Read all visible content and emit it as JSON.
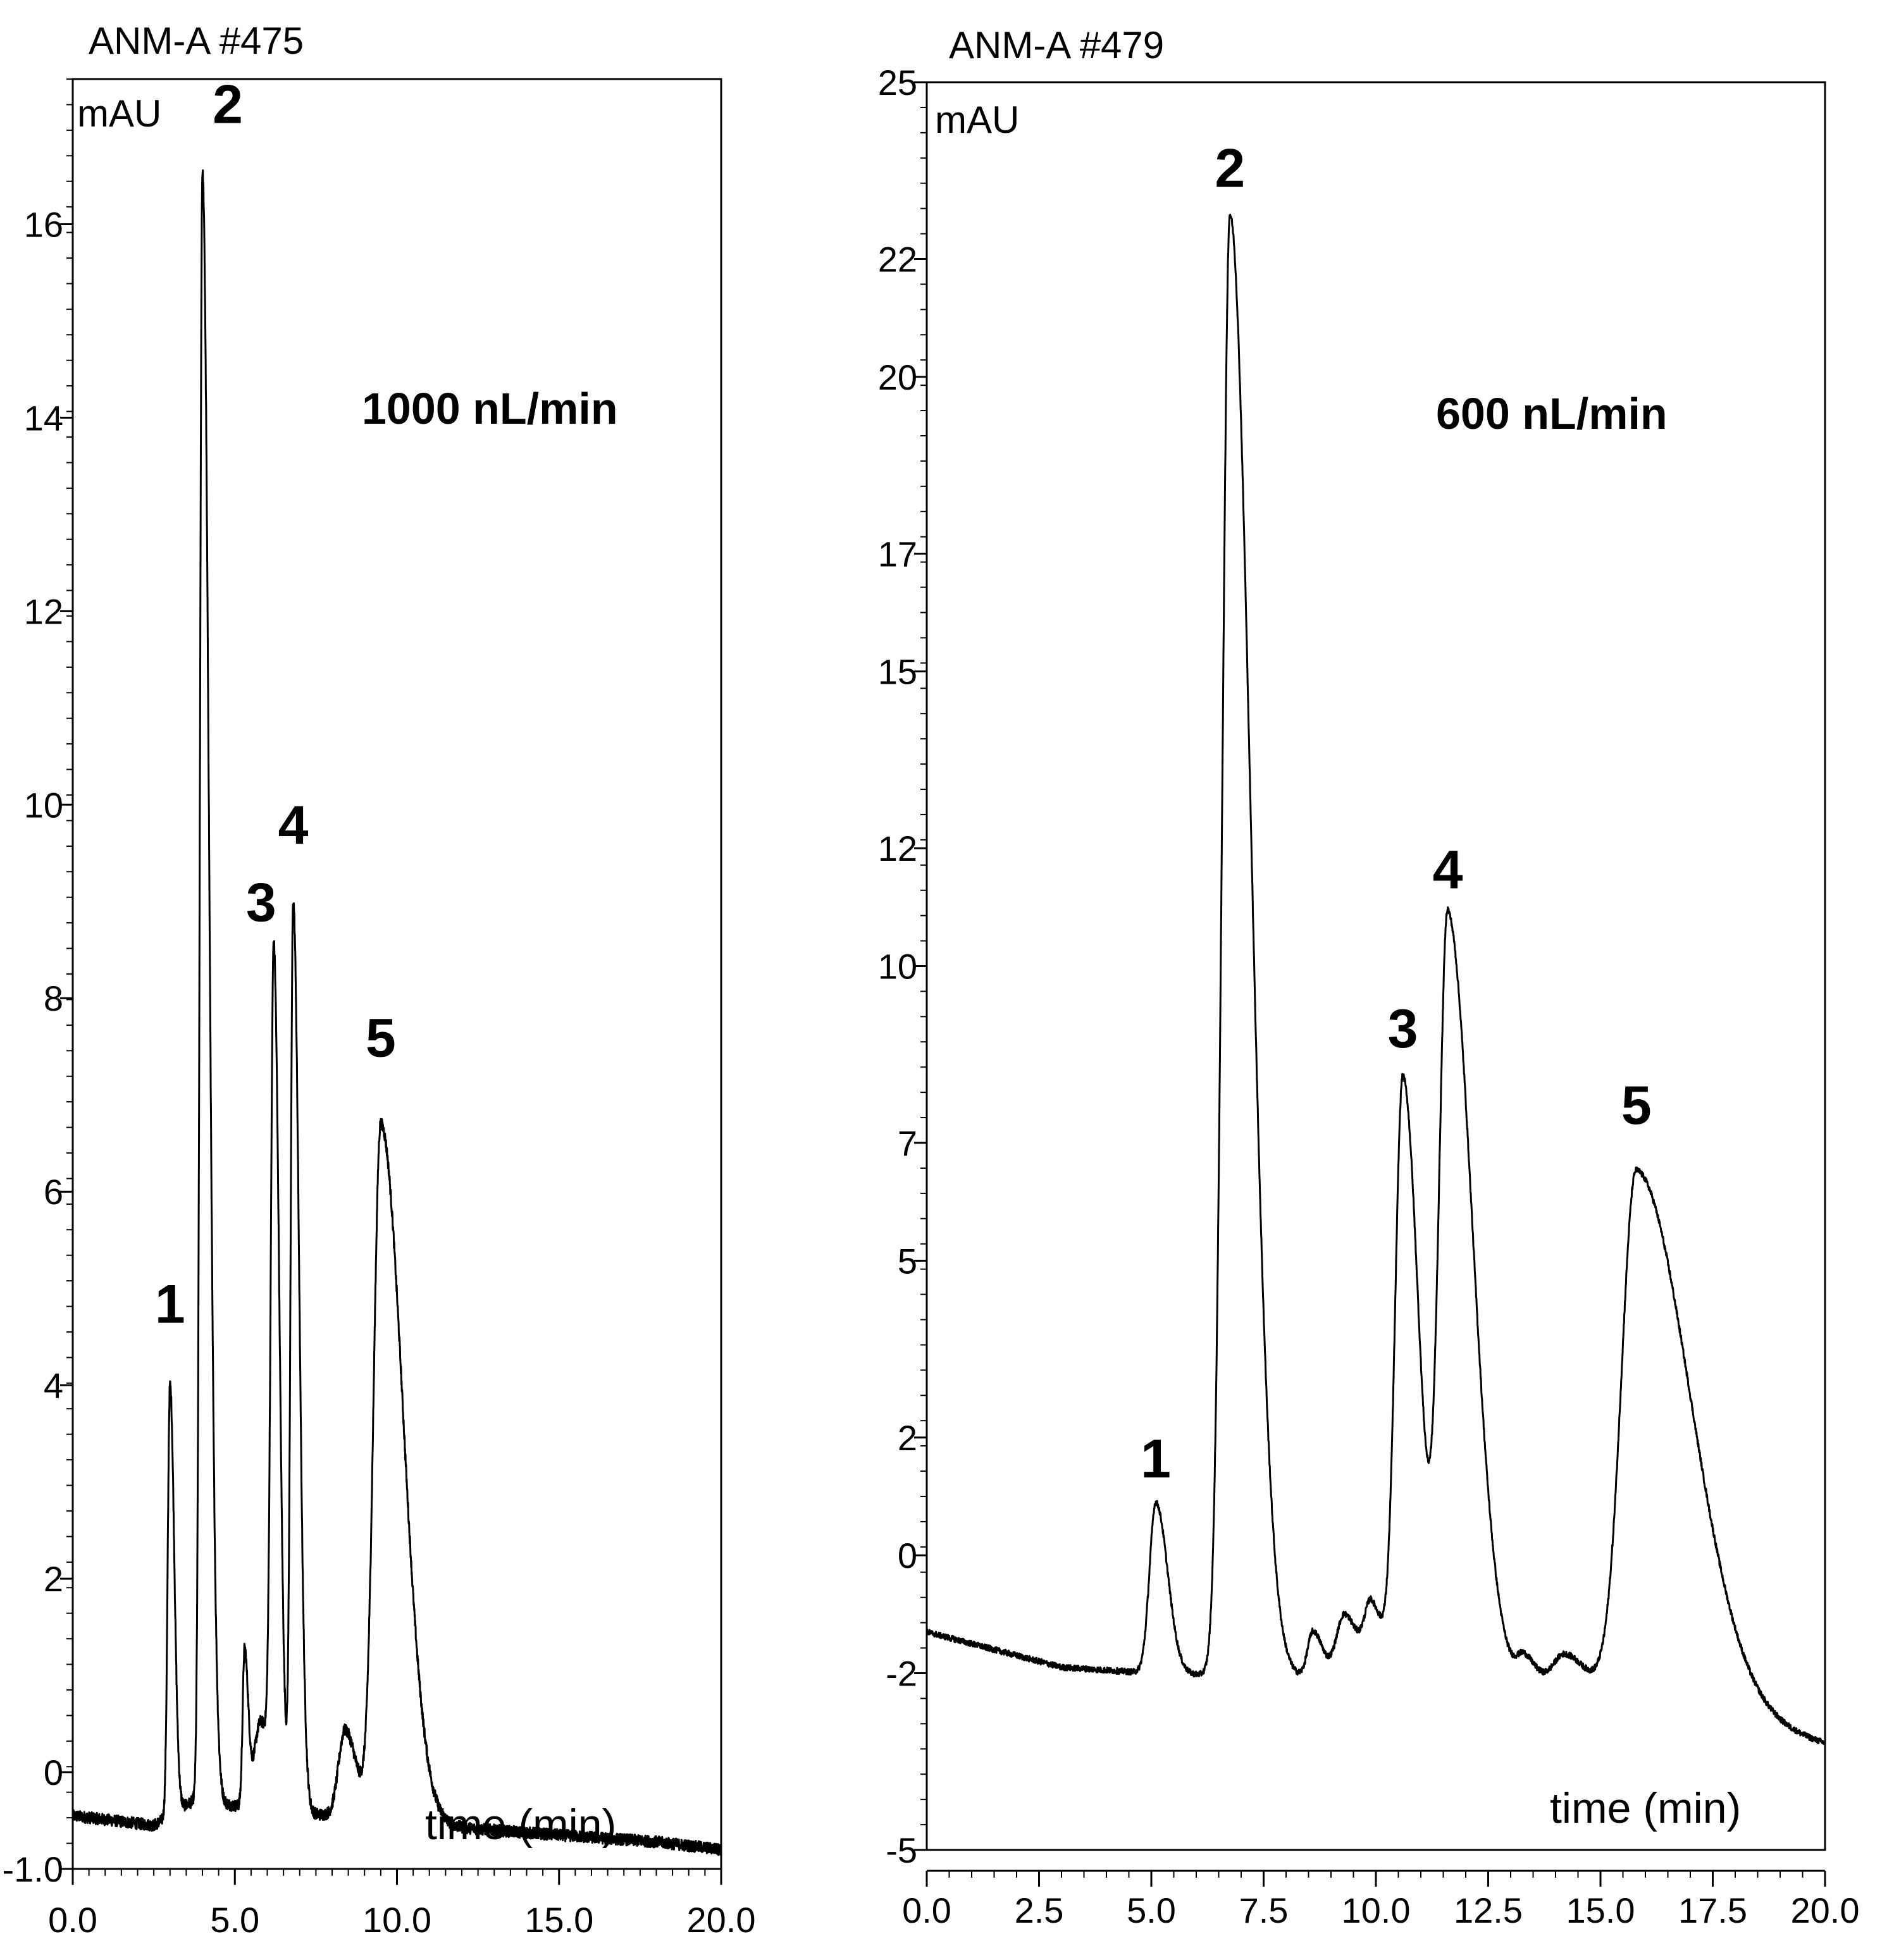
{
  "colors": {
    "trace": "#000000",
    "axis": "#000000",
    "background": "#ffffff"
  },
  "chart_data": [
    {
      "type": "line",
      "title": "ANM-A #475",
      "ylabel": "mAU",
      "xlabel": "time (min)",
      "annotation": "1000 nL/min",
      "xlim": [
        0,
        20
      ],
      "ylim": [
        -1,
        17.5
      ],
      "xticks": [
        0,
        5,
        10,
        15,
        20
      ],
      "xtick_labels": [
        "0.0",
        "5.0",
        "10.0",
        "15.0",
        "20.0"
      ],
      "yticks": [
        -1,
        0,
        2,
        4,
        6,
        8,
        10,
        12,
        14,
        16
      ],
      "ytick_labels": [
        "-1.0",
        "0",
        "2",
        "4",
        "6",
        "8",
        "10",
        "12",
        "14",
        "16"
      ],
      "baseline": [
        [
          0,
          -0.45
        ],
        [
          2.5,
          -0.55
        ],
        [
          3.7,
          -0.3
        ],
        [
          8,
          -0.45
        ],
        [
          11,
          -0.55
        ],
        [
          15,
          -0.65
        ],
        [
          18,
          -0.72
        ],
        [
          20,
          -0.8
        ]
      ],
      "peaks": [
        {
          "t": 3.0,
          "h": 4.45,
          "w": 0.07,
          "tail": 0.06
        },
        {
          "t": 4.0,
          "h": 16.85,
          "w": 0.08,
          "tail": 0.12
        },
        {
          "t": 5.3,
          "h": 1.6,
          "w": 0.06,
          "tail": 0.05
        },
        {
          "t": 5.8,
          "h": 0.9,
          "w": 0.2,
          "tail": 0.1
        },
        {
          "t": 6.2,
          "h": 8.6,
          "w": 0.09,
          "tail": 0.08
        },
        {
          "t": 6.8,
          "h": 9.4,
          "w": 0.08,
          "tail": 0.1
        },
        {
          "t": 8.4,
          "h": 0.9,
          "w": 0.2,
          "tail": 0.15
        },
        {
          "t": 9.5,
          "h": 7.2,
          "w": 0.22,
          "tail": 0.45
        }
      ],
      "noise": 0.06,
      "peak_labels": [
        {
          "label": "1",
          "t": 3.0,
          "y": 4.45
        },
        {
          "label": "2",
          "t": 4.0,
          "y": 16.85
        },
        {
          "label": "3",
          "t": 6.2,
          "y": 8.6
        },
        {
          "label": "4",
          "t": 6.8,
          "y": 9.4
        },
        {
          "label": "5",
          "t": 9.5,
          "y": 7.2
        }
      ]
    },
    {
      "type": "line",
      "title": "ANM-A #479",
      "ylabel": "mAU",
      "xlabel": "time (min)",
      "annotation": "600 nL/min",
      "xlim": [
        0,
        20
      ],
      "ylim": [
        -5,
        25
      ],
      "xticks": [
        0,
        2.5,
        5,
        7.5,
        10,
        12.5,
        15,
        17.5,
        20
      ],
      "xtick_labels": [
        "0.0",
        "2.5",
        "5.0",
        "7.5",
        "10.0",
        "12.5",
        "15.0",
        "17.5",
        "20.0"
      ],
      "yticks": [
        -5,
        -2,
        0,
        2,
        5,
        7,
        10,
        12,
        15,
        17,
        20,
        22,
        25
      ],
      "ytick_labels": [
        "-5",
        "-2",
        "0",
        "2",
        "5",
        "7",
        "10",
        "12",
        "15",
        "17",
        "20",
        "22",
        "25"
      ],
      "baseline": [
        [
          0,
          -1.3
        ],
        [
          3,
          -1.9
        ],
        [
          5,
          -2.0
        ],
        [
          9,
          -2.1
        ],
        [
          12,
          -2.1
        ],
        [
          15,
          -2.2
        ],
        [
          18,
          -2.8
        ],
        [
          20,
          -3.2
        ]
      ],
      "peaks": [
        {
          "t": 5.1,
          "h": 2.9,
          "w": 0.14,
          "tail": 0.12
        },
        {
          "t": 6.75,
          "h": 24.8,
          "w": 0.17,
          "tail": 0.28
        },
        {
          "t": 8.6,
          "h": 0.8,
          "w": 0.12,
          "tail": 0.1
        },
        {
          "t": 9.3,
          "h": 1.1,
          "w": 0.18,
          "tail": 0.12
        },
        {
          "t": 9.9,
          "h": 1.2,
          "w": 0.15,
          "tail": 0.12
        },
        {
          "t": 10.6,
          "h": 10.2,
          "w": 0.17,
          "tail": 0.18
        },
        {
          "t": 11.6,
          "h": 12.9,
          "w": 0.19,
          "tail": 0.35
        },
        {
          "t": 13.3,
          "h": 0.4,
          "w": 0.15,
          "tail": 0.1
        },
        {
          "t": 14.2,
          "h": 0.5,
          "w": 0.25,
          "tail": 0.15
        },
        {
          "t": 15.8,
          "h": 8.9,
          "w": 0.33,
          "tail": 0.85
        }
      ],
      "noise": 0.05,
      "peak_labels": [
        {
          "label": "1",
          "t": 5.1,
          "y": 1.0
        },
        {
          "label": "2",
          "t": 6.75,
          "y": 22.9
        },
        {
          "label": "3",
          "t": 10.6,
          "y": 8.3
        },
        {
          "label": "4",
          "t": 11.6,
          "y": 11.0
        },
        {
          "label": "5",
          "t": 15.8,
          "y": 7.0
        }
      ]
    }
  ]
}
